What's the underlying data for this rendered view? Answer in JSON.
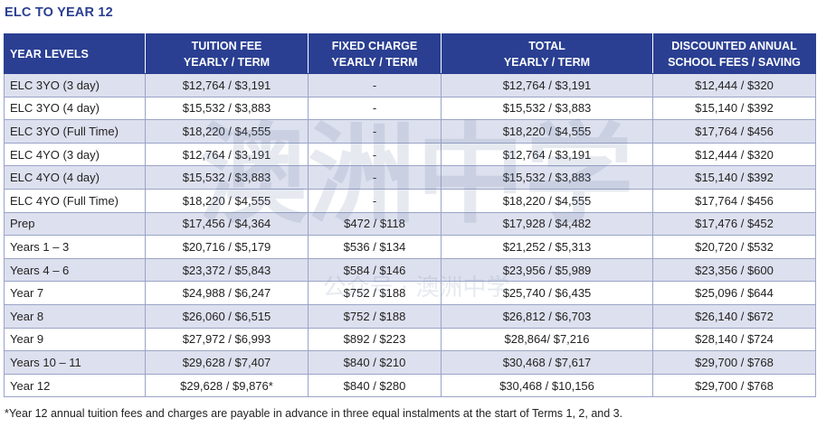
{
  "title": "ELC TO YEAR 12",
  "headers": [
    [
      "YEAR LEVELS",
      ""
    ],
    [
      "TUITION FEE",
      "YEARLY / TERM"
    ],
    [
      "FIXED CHARGE",
      "YEARLY / TERM"
    ],
    [
      "TOTAL",
      "YEARLY / TERM"
    ],
    [
      "DISCOUNTED ANNUAL",
      "SCHOOL FEES / SAVING"
    ]
  ],
  "rows": [
    [
      "ELC 3YO (3 day)",
      "$12,764 / $3,191",
      "-",
      "$12,764 / $3,191",
      "$12,444 / $320"
    ],
    [
      "ELC 3YO (4 day)",
      "$15,532 / $3,883",
      "-",
      "$15,532 / $3,883",
      "$15,140 / $392"
    ],
    [
      "ELC 3YO (Full Time)",
      "$18,220 / $4,555",
      "-",
      "$18,220 / $4,555",
      "$17,764 / $456"
    ],
    [
      "ELC 4YO (3 day)",
      "$12,764 / $3,191",
      "-",
      "$12,764 / $3,191",
      "$12,444 / $320"
    ],
    [
      "ELC 4YO (4 day)",
      "$15,532 / $3,883",
      "-",
      "$15,532 / $3,883",
      "$15,140 / $392"
    ],
    [
      "ELC 4YO (Full Time)",
      "$18,220 / $4,555",
      "-",
      "$18,220 / $4,555",
      "$17,764 / $456"
    ],
    [
      "Prep",
      "$17,456 / $4,364",
      "$472 / $118",
      "$17,928 / $4,482",
      "$17,476 / $452"
    ],
    [
      "Years 1 – 3",
      "$20,716 / $5,179",
      "$536 / $134",
      "$21,252 / $5,313",
      "$20,720 / $532"
    ],
    [
      "Years 4 – 6",
      "$23,372 / $5,843",
      "$584 / $146",
      "$23,956 / $5,989",
      "$23,356 / $600"
    ],
    [
      "Year 7",
      "$24,988 / $6,247",
      "$752 / $188",
      "$25,740 / $6,435",
      "$25,096 / $644"
    ],
    [
      "Year 8",
      "$26,060 / $6,515",
      "$752 / $188",
      "$26,812 / $6,703",
      "$26,140 / $672"
    ],
    [
      "Year 9",
      "$27,972 / $6,993",
      "$892 / $223",
      "$28,864/ $7,216",
      "$28,140 / $724"
    ],
    [
      "Years 10 – 11",
      "$29,628 / $7,407",
      "$840 / $210",
      "$30,468 / $7,617",
      "$29,700 / $768"
    ],
    [
      "Year 12",
      "$29,628 / $9,876*",
      "$840 / $280",
      "$30,468 / $10,156",
      "$29,700 / $768"
    ]
  ],
  "footnote": "*Year 12 annual tuition fees and charges are payable in advance in three equal instalments at the start of Terms 1, 2, and 3.",
  "watermark": {
    "main": "澳洲中学",
    "sub": "公众号 · 澳洲中学"
  },
  "colors": {
    "header_bg": "#2a3f92",
    "stripe": "#dde0ee",
    "title": "#2a3f92"
  }
}
